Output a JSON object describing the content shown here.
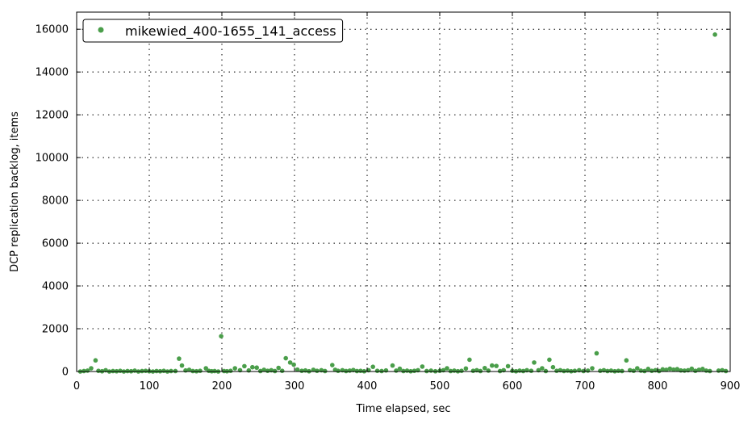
{
  "chart_data": {
    "type": "scatter",
    "title": "",
    "xlabel": "Time elapsed, sec",
    "ylabel": "DCP replication backlog, items",
    "xlim": [
      0,
      900
    ],
    "ylim": [
      0,
      16800
    ],
    "xticks": [
      0,
      100,
      200,
      300,
      400,
      500,
      600,
      700,
      800,
      900
    ],
    "yticks": [
      0,
      2000,
      4000,
      6000,
      8000,
      10000,
      12000,
      14000,
      16000
    ],
    "grid": true,
    "legend_position": "top-left",
    "series": [
      {
        "name": "mikewied_400-1655_141_access",
        "color": "#4a9e4a",
        "points": [
          [
            5,
            0
          ],
          [
            10,
            20
          ],
          [
            15,
            40
          ],
          [
            20,
            150
          ],
          [
            26,
            520
          ],
          [
            30,
            30
          ],
          [
            35,
            10
          ],
          [
            40,
            60
          ],
          [
            45,
            0
          ],
          [
            50,
            20
          ],
          [
            55,
            10
          ],
          [
            60,
            30
          ],
          [
            65,
            0
          ],
          [
            70,
            20
          ],
          [
            75,
            10
          ],
          [
            80,
            40
          ],
          [
            85,
            0
          ],
          [
            90,
            20
          ],
          [
            95,
            30
          ],
          [
            100,
            10
          ],
          [
            105,
            0
          ],
          [
            110,
            20
          ],
          [
            115,
            10
          ],
          [
            120,
            30
          ],
          [
            125,
            0
          ],
          [
            130,
            20
          ],
          [
            136,
            20
          ],
          [
            141,
            600
          ],
          [
            145,
            280
          ],
          [
            150,
            50
          ],
          [
            155,
            80
          ],
          [
            160,
            20
          ],
          [
            165,
            10
          ],
          [
            170,
            30
          ],
          [
            178,
            150
          ],
          [
            182,
            30
          ],
          [
            186,
            10
          ],
          [
            190,
            20
          ],
          [
            195,
            0
          ],
          [
            199,
            1650
          ],
          [
            203,
            20
          ],
          [
            207,
            10
          ],
          [
            212,
            30
          ],
          [
            218,
            150
          ],
          [
            225,
            60
          ],
          [
            231,
            250
          ],
          [
            237,
            50
          ],
          [
            242,
            200
          ],
          [
            248,
            180
          ],
          [
            253,
            20
          ],
          [
            258,
            80
          ],
          [
            263,
            30
          ],
          [
            268,
            60
          ],
          [
            273,
            20
          ],
          [
            278,
            170
          ],
          [
            283,
            30
          ],
          [
            288,
            620
          ],
          [
            294,
            420
          ],
          [
            299,
            320
          ],
          [
            304,
            90
          ],
          [
            310,
            30
          ],
          [
            315,
            50
          ],
          [
            320,
            10
          ],
          [
            326,
            80
          ],
          [
            331,
            30
          ],
          [
            337,
            60
          ],
          [
            342,
            20
          ],
          [
            352,
            300
          ],
          [
            356,
            80
          ],
          [
            360,
            30
          ],
          [
            366,
            60
          ],
          [
            371,
            20
          ],
          [
            376,
            40
          ],
          [
            381,
            70
          ],
          [
            386,
            20
          ],
          [
            391,
            30
          ],
          [
            396,
            10
          ],
          [
            402,
            60
          ],
          [
            408,
            220
          ],
          [
            414,
            30
          ],
          [
            420,
            20
          ],
          [
            426,
            50
          ],
          [
            435,
            280
          ],
          [
            440,
            40
          ],
          [
            445,
            130
          ],
          [
            450,
            20
          ],
          [
            455,
            40
          ],
          [
            460,
            10
          ],
          [
            465,
            30
          ],
          [
            470,
            60
          ],
          [
            476,
            230
          ],
          [
            482,
            20
          ],
          [
            488,
            40
          ],
          [
            494,
            10
          ],
          [
            500,
            30
          ],
          [
            505,
            60
          ],
          [
            510,
            150
          ],
          [
            515,
            20
          ],
          [
            520,
            40
          ],
          [
            525,
            10
          ],
          [
            530,
            30
          ],
          [
            536,
            140
          ],
          [
            541,
            550
          ],
          [
            546,
            30
          ],
          [
            551,
            60
          ],
          [
            556,
            20
          ],
          [
            562,
            160
          ],
          [
            567,
            40
          ],
          [
            572,
            280
          ],
          [
            578,
            260
          ],
          [
            583,
            20
          ],
          [
            588,
            60
          ],
          [
            594,
            250
          ],
          [
            600,
            30
          ],
          [
            605,
            10
          ],
          [
            610,
            40
          ],
          [
            615,
            20
          ],
          [
            620,
            60
          ],
          [
            626,
            30
          ],
          [
            630,
            420
          ],
          [
            636,
            60
          ],
          [
            641,
            150
          ],
          [
            646,
            20
          ],
          [
            651,
            550
          ],
          [
            656,
            200
          ],
          [
            661,
            30
          ],
          [
            666,
            60
          ],
          [
            671,
            20
          ],
          [
            676,
            40
          ],
          [
            681,
            10
          ],
          [
            686,
            30
          ],
          [
            692,
            60
          ],
          [
            698,
            20
          ],
          [
            704,
            40
          ],
          [
            710,
            150
          ],
          [
            716,
            850
          ],
          [
            721,
            30
          ],
          [
            726,
            60
          ],
          [
            731,
            20
          ],
          [
            736,
            40
          ],
          [
            741,
            10
          ],
          [
            746,
            30
          ],
          [
            751,
            20
          ],
          [
            757,
            520
          ],
          [
            762,
            60
          ],
          [
            767,
            30
          ],
          [
            772,
            150
          ],
          [
            777,
            40
          ],
          [
            782,
            20
          ],
          [
            787,
            120
          ],
          [
            792,
            30
          ],
          [
            797,
            60
          ],
          [
            802,
            20
          ],
          [
            807,
            100
          ],
          [
            812,
            80
          ],
          [
            817,
            130
          ],
          [
            822,
            90
          ],
          [
            827,
            110
          ],
          [
            832,
            50
          ],
          [
            837,
            40
          ],
          [
            842,
            60
          ],
          [
            847,
            130
          ],
          [
            852,
            30
          ],
          [
            857,
            80
          ],
          [
            862,
            120
          ],
          [
            867,
            40
          ],
          [
            872,
            20
          ],
          [
            879,
            15750
          ],
          [
            884,
            40
          ],
          [
            889,
            60
          ],
          [
            894,
            20
          ]
        ]
      }
    ]
  }
}
